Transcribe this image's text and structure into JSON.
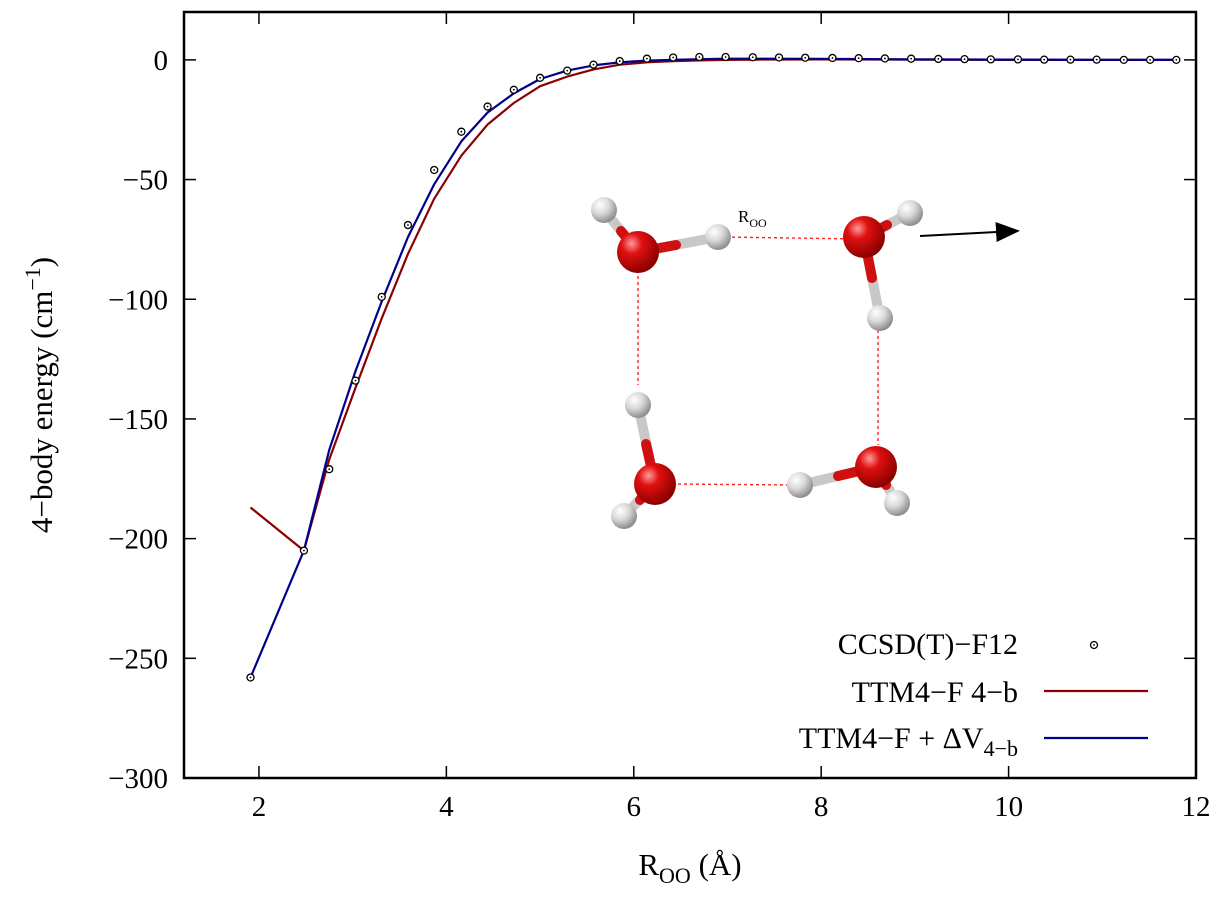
{
  "chart_data": {
    "type": "line",
    "xlabel": {
      "main": "R",
      "sub": "OO",
      "rest": " (Å)"
    },
    "ylabel": {
      "main": "4−body energy (cm",
      "sup": "−1",
      "rest": ")"
    },
    "xlim": [
      1.2,
      12
    ],
    "ylim": [
      -300,
      20
    ],
    "xticks": [
      2,
      4,
      6,
      8,
      10,
      12
    ],
    "yticks": [
      0,
      -50,
      -100,
      -150,
      -200,
      -250,
      -300
    ],
    "xtick_labels": [
      "2",
      "4",
      "6",
      "8",
      "10",
      "12"
    ],
    "ytick_labels": [
      "0",
      "−50",
      "−100",
      "−150",
      "−200",
      "−250",
      "−300"
    ],
    "grid": false,
    "legend_position": "bottom-right",
    "inset_label": {
      "main": "R",
      "sub": "OO"
    },
    "colors": {
      "ccsd": "#000000",
      "ttm4": "#8b0000",
      "delta": "#00008b"
    },
    "series": [
      {
        "name": "CCSD(T)−F12",
        "style": "points",
        "x": [
          1.91,
          2.48,
          2.75,
          3.03,
          3.31,
          3.59,
          3.87,
          4.16,
          4.44,
          4.72,
          5.0,
          5.29,
          5.57,
          5.85,
          6.14,
          6.42,
          6.7,
          6.98,
          7.27,
          7.55,
          7.83,
          8.12,
          8.4,
          8.68,
          8.96,
          9.25,
          9.53,
          9.81,
          10.1,
          10.38,
          10.66,
          10.94,
          11.23,
          11.51,
          11.79
        ],
        "y": [
          -258,
          -205,
          -171,
          -134,
          -99,
          -69,
          -46,
          -30,
          -19.5,
          -12.5,
          -7.5,
          -4.5,
          -2,
          -0.5,
          0.5,
          1,
          1.2,
          1.2,
          1.1,
          1.0,
          0.9,
          0.8,
          0.7,
          0.6,
          0.5,
          0.4,
          0.3,
          0.2,
          0.2,
          0.1,
          0.1,
          0.1,
          0,
          0,
          0
        ]
      },
      {
        "name": "TTM4−F 4−b",
        "label_main": "TTM4−F 4−b",
        "style": "line",
        "x": [
          1.91,
          2.48,
          2.75,
          3.03,
          3.31,
          3.59,
          3.87,
          4.16,
          4.44,
          4.72,
          5.0,
          5.29,
          5.57,
          5.85,
          6.14,
          6.42,
          6.7,
          6.98,
          7.27,
          8.0,
          9.0,
          10.0,
          11.0,
          11.79
        ],
        "y": [
          -187,
          -205,
          -167,
          -137,
          -108,
          -81,
          -58,
          -40,
          -27,
          -18,
          -11,
          -7,
          -4,
          -2,
          -1,
          -0.5,
          -0.2,
          0,
          0.1,
          0.2,
          0.1,
          0,
          0,
          0
        ]
      },
      {
        "name": "TTM4−F + ΔV4−b",
        "label_main": "TTM4−F + ΔV",
        "label_sub": "4−b",
        "style": "line",
        "x": [
          1.91,
          2.48,
          2.75,
          3.03,
          3.31,
          3.59,
          3.87,
          4.16,
          4.44,
          4.72,
          5.0,
          5.29,
          5.57,
          5.85,
          6.14,
          6.42,
          6.7,
          6.98,
          7.27,
          8.0,
          9.0,
          10.0,
          11.0,
          11.79
        ],
        "y": [
          -258,
          -205,
          -163,
          -130,
          -101,
          -74,
          -52,
          -34,
          -22,
          -14,
          -8,
          -4.5,
          -2.3,
          -1,
          -0.3,
          0,
          0.3,
          0.5,
          0.5,
          0.4,
          0.2,
          0.1,
          0,
          0
        ]
      }
    ]
  }
}
